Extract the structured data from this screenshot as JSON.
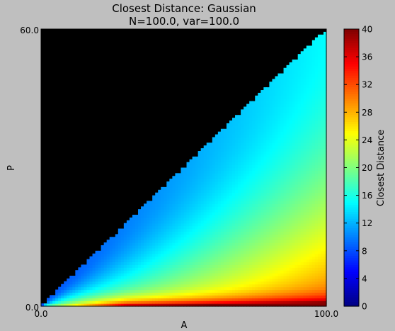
{
  "chart_data": {
    "type": "heatmap",
    "title": "Closest Distance: Gaussian",
    "subtitle": "N=100.0, var=100.0",
    "xlabel": "A",
    "ylabel": "P",
    "xlim": [
      0,
      100
    ],
    "ylim": [
      0,
      60
    ],
    "x_ticks": [
      "0.0",
      "100.0"
    ],
    "y_ticks": [
      "0.0",
      "60.0"
    ],
    "masked_region": "P > 0.6*A (rendered black)",
    "grid": false,
    "colorbar": {
      "label": "Closest Distance",
      "range": [
        0,
        40
      ],
      "ticks": [
        0,
        4,
        8,
        12,
        16,
        20,
        24,
        28,
        32,
        36,
        40
      ],
      "colormap": "jet",
      "placement": "right"
    },
    "value_samples": [
      {
        "A": 100,
        "P": 1,
        "value": 34
      },
      {
        "A": 100,
        "P": 5,
        "value": 29
      },
      {
        "A": 100,
        "P": 15,
        "value": 24
      },
      {
        "A": 100,
        "P": 30,
        "value": 20
      },
      {
        "A": 100,
        "P": 50,
        "value": 17
      },
      {
        "A": 100,
        "P": 59,
        "value": 15
      },
      {
        "A": 50,
        "P": 2,
        "value": 28
      },
      {
        "A": 50,
        "P": 10,
        "value": 23
      },
      {
        "A": 50,
        "P": 29,
        "value": 16
      },
      {
        "A": 10,
        "P": 1,
        "value": 22
      },
      {
        "A": 10,
        "P": 5,
        "value": 16
      }
    ],
    "colors": {
      "background": "#bfbfbf",
      "masked": "#000000"
    }
  }
}
